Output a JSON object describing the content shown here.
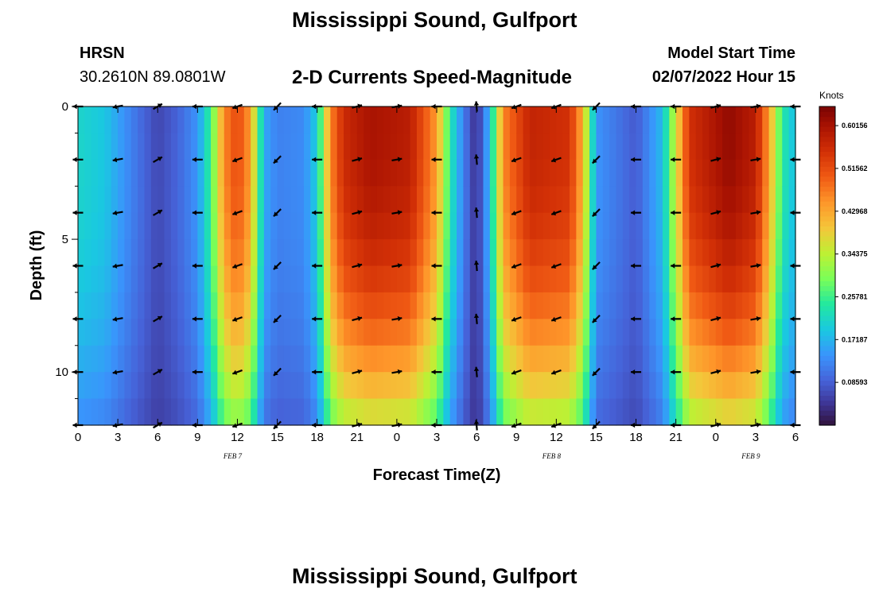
{
  "page": {
    "title": "Mississippi Sound, Gulfport",
    "second_title": "Mississippi Sound, Gulfport",
    "station_id": "HRSN",
    "coordinates": "30.2610N  89.0801W",
    "plot_title": "2-D Currents Speed-Magnitude",
    "model_start_label": "Model Start Time",
    "model_start_value": "02/07/2022 Hour 15"
  },
  "chart_data": {
    "type": "heatmap",
    "xlabel": "Forecast Time(Z)",
    "ylabel": "Depth (ft)",
    "x_range_hours_from_feb7_00z": [
      0,
      54
    ],
    "y_range_ft": [
      0,
      12
    ],
    "y_inverted": true,
    "x_tick_labels": [
      "0",
      "3",
      "6",
      "9",
      "12",
      "15",
      "18",
      "21",
      "0",
      "3",
      "6",
      "9",
      "12",
      "15",
      "18",
      "21",
      "0",
      "3",
      "6"
    ],
    "y_ticks": [
      0,
      5,
      10
    ],
    "date_labels": [
      {
        "label": "FEB 7",
        "hour": 12
      },
      {
        "label": "FEB 8",
        "hour": 36
      },
      {
        "label": "FEB 9",
        "hour": 51
      }
    ],
    "colorbar": {
      "title": "Knots",
      "range": [
        0.0,
        0.64
      ],
      "tick_values": [
        0.60156,
        0.51562,
        0.42968,
        0.34375,
        0.25781,
        0.17187,
        0.08593
      ],
      "tick_labels": [
        "0.60156",
        "0.51562",
        "0.42968",
        "0.34375",
        "0.25781",
        "0.17187",
        "0.08593"
      ],
      "colormap": "turbo"
    },
    "speed_profile_surface_knots": [
      [
        0,
        0.21
      ],
      [
        2,
        0.19
      ],
      [
        4,
        0.12
      ],
      [
        6,
        0.06
      ],
      [
        7.5,
        0.09
      ],
      [
        9,
        0.14
      ],
      [
        10,
        0.26
      ],
      [
        11,
        0.46
      ],
      [
        12,
        0.52
      ],
      [
        13,
        0.44
      ],
      [
        14,
        0.16
      ],
      [
        15,
        0.12
      ],
      [
        17,
        0.13
      ],
      [
        18,
        0.2
      ],
      [
        19,
        0.46
      ],
      [
        20,
        0.56
      ],
      [
        22,
        0.6
      ],
      [
        25,
        0.58
      ],
      [
        27,
        0.44
      ],
      [
        28,
        0.24
      ],
      [
        29,
        0.12
      ],
      [
        30,
        0.03
      ],
      [
        31,
        0.18
      ],
      [
        32,
        0.46
      ],
      [
        34,
        0.57
      ],
      [
        37,
        0.55
      ],
      [
        38,
        0.42
      ],
      [
        39,
        0.14
      ],
      [
        42,
        0.08
      ],
      [
        44,
        0.18
      ],
      [
        45,
        0.36
      ],
      [
        46,
        0.55
      ],
      [
        49,
        0.62
      ],
      [
        51,
        0.58
      ],
      [
        52,
        0.44
      ],
      [
        53,
        0.24
      ],
      [
        54,
        0.18
      ]
    ],
    "vector_depths_ft": [
      0,
      2,
      4,
      6,
      8,
      10,
      12
    ],
    "vector_hours": [
      0,
      3,
      6,
      9,
      12,
      15,
      18,
      21,
      24,
      27,
      30,
      33,
      36,
      39,
      42,
      45,
      48,
      51,
      54
    ],
    "vector_directions_deg": [
      180,
      190,
      30,
      180,
      200,
      225,
      180,
      15,
      10,
      180,
      95,
      200,
      200,
      225,
      180,
      180,
      15,
      10,
      180
    ]
  }
}
